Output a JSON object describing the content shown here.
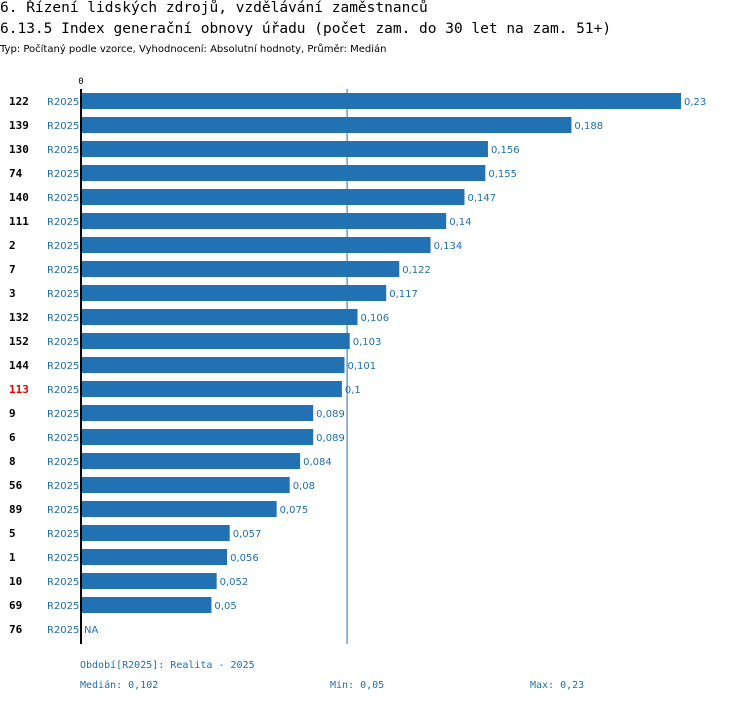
{
  "header": {
    "title": "6. Řízení lidských zdrojů, vzdělávání zaměstnanců",
    "subtitle": "6.13.5 Index generační obnovy úřadu (počet zam. do 30 let na zam. 51+)",
    "type_line": "Typ: Počítaný podle vzorce, Vyhodnocení: Absolutní hodnoty, Průměr: Medián"
  },
  "chart_data": {
    "type": "bar",
    "orientation": "horizontal",
    "title": "6.13.5 Index generační obnovy úřadu (počet zam. do 30 let na zam. 51+)",
    "period_label": "R2025",
    "axis_zero_label": "0",
    "xlim": [
      0,
      0.23
    ],
    "median_line": 0.102,
    "bar_color": "#2271b3",
    "highlight_color": "#e00000",
    "highlight_category": "113",
    "categories": [
      "122",
      "139",
      "130",
      "74",
      "140",
      "111",
      "2",
      "7",
      "3",
      "132",
      "152",
      "144",
      "113",
      "9",
      "6",
      "8",
      "56",
      "89",
      "5",
      "1",
      "10",
      "69",
      "76"
    ],
    "values": [
      0.23,
      0.188,
      0.156,
      0.155,
      0.147,
      0.14,
      0.134,
      0.122,
      0.117,
      0.106,
      0.103,
      0.101,
      0.1,
      0.089,
      0.089,
      0.084,
      0.08,
      0.075,
      0.057,
      0.056,
      0.052,
      0.05,
      null
    ],
    "value_labels": [
      "0,23",
      "0,188",
      "0,156",
      "0,155",
      "0,147",
      "0,14",
      "0,134",
      "0,122",
      "0,117",
      "0,106",
      "0,103",
      "0,101",
      "0,1",
      "0,089",
      "0,089",
      "0,084",
      "0,08",
      "0,075",
      "0,057",
      "0,056",
      "0,052",
      "0,05",
      "NA"
    ]
  },
  "footer": {
    "period": "Období[R2025]: Realita - 2025",
    "median": "Medián: 0,102",
    "min": "Min: 0,05",
    "max": "Max: 0,23"
  }
}
